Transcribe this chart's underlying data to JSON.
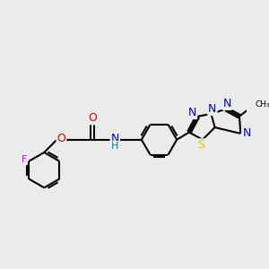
{
  "bg_color": "#ebebeb",
  "atom_colors": {
    "C": "#000000",
    "N": "#0000cc",
    "O": "#cc0000",
    "S": "#cccc00",
    "F": "#dd00dd",
    "H": "#008080"
  },
  "bond_color": "#000000",
  "bond_width": 1.5,
  "font_size": 8
}
